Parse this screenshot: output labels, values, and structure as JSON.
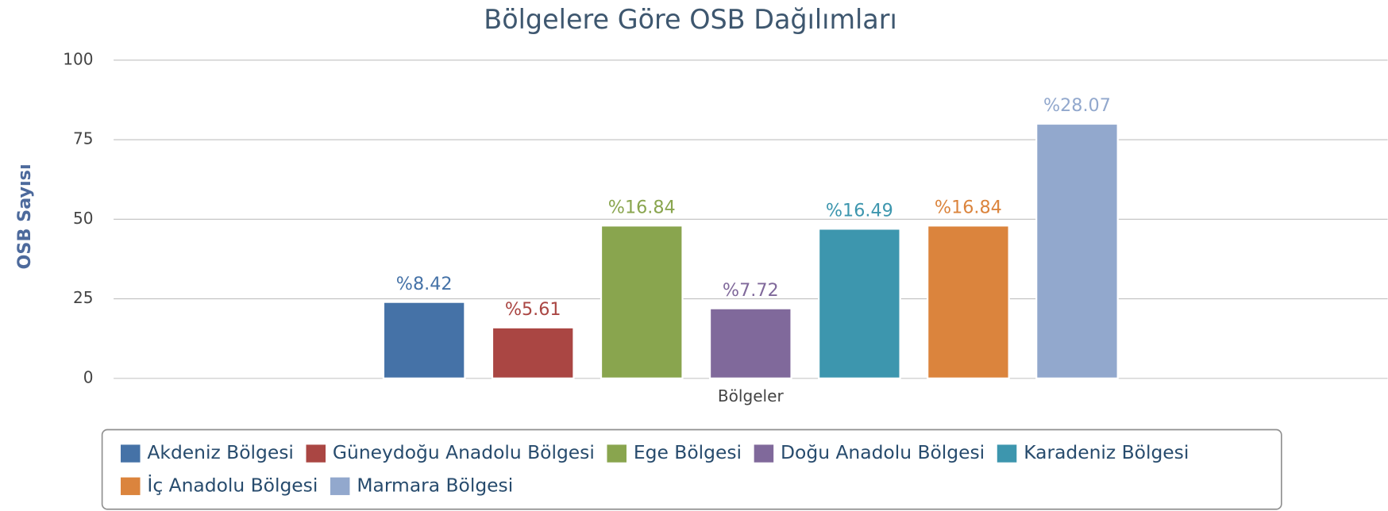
{
  "chart_data": {
    "type": "bar",
    "title": "Bölgelere Göre OSB Dağılımları",
    "y_label": "OSB Sayısı",
    "categories": [
      "Bölgeler"
    ],
    "series": [
      {
        "name": "Akdeniz Bölgesi",
        "color": "#4572a7",
        "values": [
          24
        ],
        "value_labels": [
          "%8.42"
        ]
      },
      {
        "name": "Güneydoğu Anadolu Bölgesi",
        "color": "#aa4643",
        "values": [
          16
        ],
        "value_labels": [
          "%5.61"
        ]
      },
      {
        "name": "Ege Bölgesi",
        "color": "#89a54e",
        "values": [
          48
        ],
        "value_labels": [
          "%16.84"
        ]
      },
      {
        "name": "Doğu Anadolu Bölgesi",
        "color": "#80699b",
        "values": [
          22
        ],
        "value_labels": [
          "%7.72"
        ]
      },
      {
        "name": "Karadeniz Bölgesi",
        "color": "#3d96ae",
        "values": [
          47
        ],
        "value_labels": [
          "%16.49"
        ]
      },
      {
        "name": "İç Anadolu Bölgesi",
        "color": "#db843d",
        "values": [
          48
        ],
        "value_labels": [
          "%16.84"
        ]
      },
      {
        "name": "Marmara Bölgesi",
        "color": "#92a8cd",
        "values": [
          80
        ],
        "value_labels": [
          "%28.07"
        ]
      }
    ],
    "ylim": [
      0,
      100
    ],
    "yticks": [
      0,
      25,
      50,
      75,
      100
    ],
    "grid": true,
    "legend": "bottom"
  }
}
